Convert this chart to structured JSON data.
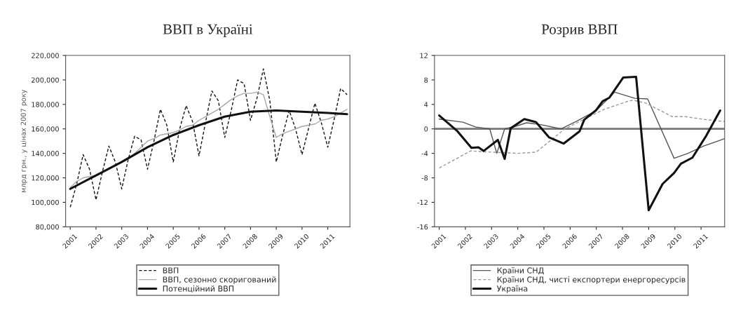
{
  "chart_data": [
    {
      "type": "line",
      "title": "ВВП в Україні",
      "ylabel": "млрд грн., у цінах 2007 року",
      "legend": "bottom",
      "grid": false,
      "x": [
        2001,
        2001.25,
        2001.5,
        2001.75,
        2002,
        2002.25,
        2002.5,
        2002.75,
        2003,
        2003.25,
        2003.5,
        2003.75,
        2004,
        2004.25,
        2004.5,
        2004.75,
        2005,
        2005.25,
        2005.5,
        2005.75,
        2006,
        2006.25,
        2006.5,
        2006.75,
        2007,
        2007.25,
        2007.5,
        2007.75,
        2008,
        2008.25,
        2008.5,
        2008.75,
        2009,
        2009.25,
        2009.5,
        2009.75,
        2010,
        2010.25,
        2010.5,
        2010.75,
        2011,
        2011.25,
        2011.5,
        2011.75
      ],
      "series": [
        {
          "name": "ВВП",
          "color": "#111111",
          "line_style": "dashed",
          "values": [
            96000,
            115000,
            139000,
            127000,
            102000,
            125000,
            146000,
            133000,
            111000,
            135000,
            154000,
            151000,
            127000,
            150000,
            176000,
            163000,
            133000,
            160000,
            179000,
            166000,
            138000,
            165000,
            191000,
            183000,
            153000,
            175000,
            200000,
            197000,
            167000,
            185000,
            209000,
            183000,
            133000,
            155000,
            175000,
            160000,
            139000,
            160000,
            181000,
            165000,
            145000,
            168000,
            193000,
            188000
          ]
        },
        {
          "name": "ВВП, сезонно скоригований",
          "color": "#a8a8a8",
          "line_style": "solid",
          "values": [
            112000,
            117000,
            120000,
            121000,
            122000,
            125000,
            128000,
            130000,
            133000,
            135000,
            140000,
            145000,
            150000,
            152000,
            155000,
            156000,
            157000,
            159000,
            162000,
            163000,
            167000,
            170000,
            173000,
            176000,
            180000,
            184000,
            187000,
            189000,
            189000,
            190000,
            188000,
            170000,
            153000,
            156000,
            158000,
            160000,
            162000,
            163000,
            164000,
            167000,
            168000,
            170000,
            173000,
            176000
          ]
        },
        {
          "name": "Потенційний ВВП",
          "color": "#111111",
          "line_style": "solid",
          "x": [
            2001,
            2002,
            2003,
            2004,
            2005,
            2006,
            2007,
            2008,
            2009,
            2010,
            2011,
            2011.75
          ],
          "values": [
            111000,
            122000,
            133000,
            145000,
            155000,
            163000,
            170000,
            174000,
            175000,
            174000,
            173000,
            172000
          ]
        }
      ],
      "xlim": [
        2000.82,
        2011.86
      ],
      "xticks": [
        2001,
        2002,
        2003,
        2004,
        2005,
        2006,
        2007,
        2008,
        2009,
        2010,
        2011
      ],
      "ylim": [
        80000,
        220000
      ],
      "yticks": [
        {
          "value": 80000,
          "label": "80,000"
        },
        {
          "value": 100000,
          "label": "100,000"
        },
        {
          "value": 120000,
          "label": "120,000"
        },
        {
          "value": 140000,
          "label": "140,000"
        },
        {
          "value": 160000,
          "label": "160,000"
        },
        {
          "value": 180000,
          "label": "180,000"
        },
        {
          "value": 200000,
          "label": "200,000"
        },
        {
          "value": 220000,
          "label": "220,000"
        }
      ]
    },
    {
      "type": "line",
      "title": "Розрив ВВП",
      "legend": "bottom",
      "grid": false,
      "series": [
        {
          "name": "Країни СНД",
          "color": "#555555",
          "line_style": "solid",
          "x": [
            2001,
            2001.9,
            2002.4,
            2002.93,
            2003.2,
            2003.5,
            2003.9,
            2004.34,
            2004.87,
            2005.66,
            2006.27,
            2007,
            2007.7,
            2008.47,
            2008.96,
            2009.97,
            2010.5,
            2011.1,
            2011.9
          ],
          "values": [
            1.6,
            1.1,
            0.3,
            0,
            -4,
            0,
            0.4,
            1.0,
            0.7,
            0,
            1.3,
            3.0,
            6.0,
            5.0,
            4.9,
            -4.8,
            -4.0,
            -2.8,
            -1.6
          ]
        },
        {
          "name": "Країни СНД, чисті експортери енергоресурсів",
          "color": "#9a9a9a",
          "line_style": "dashed",
          "x": [
            2001,
            2002.2,
            2003,
            2004,
            2004.7,
            2005.8,
            2006.5,
            2007.3,
            2008.2,
            2008.4,
            2008.9,
            2009.9,
            2010.4,
            2011.2,
            2011.9
          ],
          "values": [
            -6.4,
            -3.6,
            -3.8,
            -4,
            -3.8,
            0,
            1.5,
            3.2,
            4.5,
            4.7,
            4.2,
            2.0,
            2.0,
            1.5,
            1.2
          ]
        },
        {
          "name": "Україна",
          "color": "#111111",
          "line_style": "solid",
          "x": [
            2001,
            2001.7,
            2002.23,
            2002.5,
            2002.7,
            2003.24,
            2003.5,
            2003.73,
            2004.25,
            2004.7,
            2005.2,
            2005.75,
            2006.36,
            2006.54,
            2006.98,
            2007.24,
            2007.5,
            2008.03,
            2008.52,
            2009,
            2009.53,
            2009.97,
            2010.23,
            2010.67,
            2011.2,
            2011.73
          ],
          "values": [
            2.2,
            -0.4,
            -3.1,
            -3.0,
            -3.6,
            -1.8,
            -4.9,
            0.1,
            1.6,
            1.1,
            -1.4,
            -2.4,
            -0.4,
            1.5,
            3.0,
            4.5,
            5.1,
            8.4,
            8.5,
            -13.3,
            -9.0,
            -7.2,
            -5.7,
            -4.7,
            -1.1,
            3.0
          ]
        }
      ],
      "ref_lines": [
        {
          "axis": "y",
          "value": 0,
          "color": "#777777"
        }
      ],
      "xlim": [
        2000.82,
        2011.9
      ],
      "xticks": [
        2001,
        2002,
        2003,
        2004,
        2005,
        2006,
        2007,
        2008,
        2009,
        2010,
        2011
      ],
      "ylim": [
        -16,
        12
      ],
      "yticks": [
        -16,
        -12,
        -8,
        -4,
        0,
        4,
        8,
        12
      ]
    }
  ]
}
